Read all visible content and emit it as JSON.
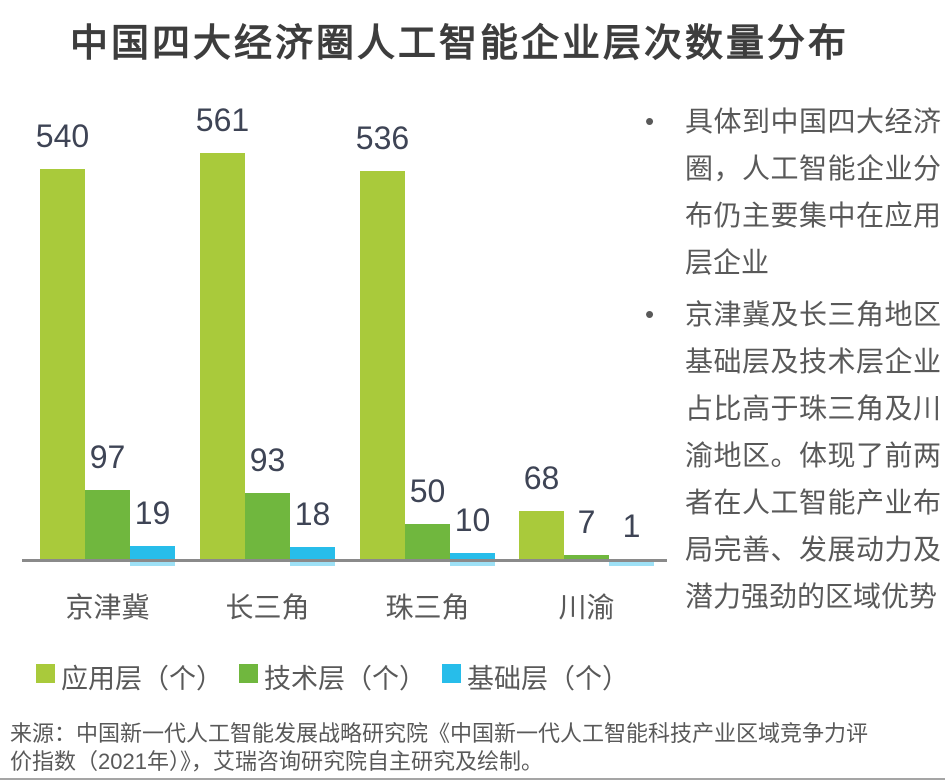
{
  "title": "中国四大经济圈人工智能企业层次数量分布",
  "chart_data": {
    "type": "bar",
    "title": "中国四大经济圈人工智能企业层次数量分布",
    "categories": [
      "京津冀",
      "长三角",
      "珠三角",
      "川渝"
    ],
    "series": [
      {
        "key": "app-layer",
        "name": "应用层（个）",
        "color": "#a9ca3b",
        "values": [
          540,
          561,
          536,
          68
        ]
      },
      {
        "key": "tech-layer",
        "name": "技术层（个）",
        "color": "#70b73e",
        "values": [
          97,
          93,
          50,
          7
        ]
      },
      {
        "key": "base-layer",
        "name": "基础层（个）",
        "color": "#27bdea",
        "values": [
          19,
          18,
          10,
          1
        ]
      }
    ],
    "xlabel": "",
    "ylabel": "",
    "ylim": [
      0,
      580
    ],
    "grid": false,
    "value_labels": "outside-end",
    "legend_position": "bottom-left",
    "axis_line_color": "#8a8a8a"
  },
  "insights": {
    "bullets": [
      "具体到中国四大经济圈，人工智能企业分布仍主要集中在应用层企业",
      "京津冀及长三角地区基础层及技术层企业占比高于珠三角及川渝地区。体现了前两者在人工智能产业布局完善、发展动力及潜力强劲的区域优势"
    ]
  },
  "source_note": "来源：中国新一代人工智能发展战略研究院《中国新一代人工智能科技产业区域竞争力评价指数（2021年）》，艾瑞咨询研究院自主研究及绘制。",
  "colors": {
    "title_text": "#3d3d3d",
    "value_label_text": "#3e4455",
    "axis_text": "#595959",
    "body_text": "#595959",
    "axis_line": "#8a8a8a",
    "bottom_rule": "#a5a5a5",
    "background": "#ffffff"
  }
}
